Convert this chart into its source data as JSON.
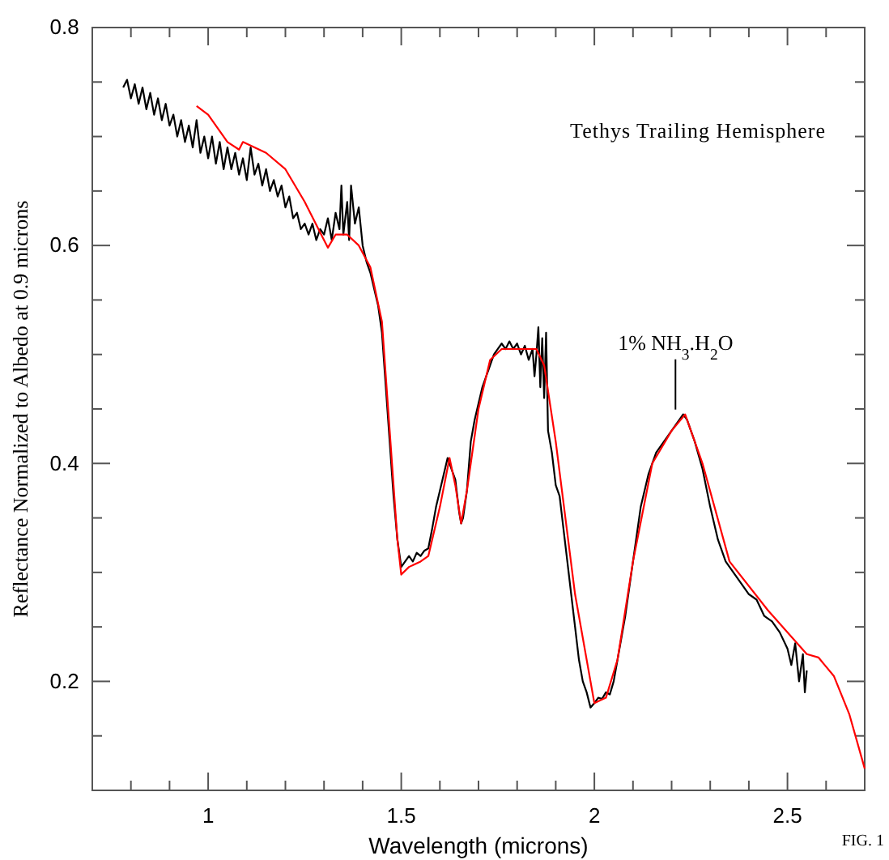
{
  "chart_data": {
    "type": "line",
    "xlabel": "Wavelength (microns)",
    "ylabel": "Reflectance Normalized to Albedo at 0.9 microns",
    "xlim": [
      0.7,
      2.7
    ],
    "ylim": [
      0.1,
      0.8
    ],
    "xticks": [
      {
        "value": 0.8,
        "label": null
      },
      {
        "value": 0.9,
        "label": null
      },
      1,
      {
        "value": 1.1,
        "label": null
      },
      {
        "value": 1.2,
        "label": null
      },
      {
        "value": 1.3,
        "label": null
      },
      {
        "value": 1.4,
        "label": null
      },
      1.5,
      {
        "value": 1.6,
        "label": null
      },
      {
        "value": 1.7,
        "label": null
      },
      {
        "value": 1.8,
        "label": null
      },
      {
        "value": 1.9,
        "label": null
      },
      2,
      {
        "value": 2.1,
        "label": null
      },
      {
        "value": 2.2,
        "label": null
      },
      {
        "value": 2.3,
        "label": null
      },
      {
        "value": 2.4,
        "label": null
      },
      2.5,
      {
        "value": 2.6,
        "label": null
      }
    ],
    "yticks": [
      {
        "value": 0.15,
        "label": null
      },
      0.2,
      {
        "value": 0.25,
        "label": null
      },
      {
        "value": 0.3,
        "label": null
      },
      {
        "value": 0.35,
        "label": null
      },
      0.4,
      {
        "value": 0.45,
        "label": null
      },
      {
        "value": 0.5,
        "label": null
      },
      {
        "value": 0.55,
        "label": null
      },
      0.6,
      {
        "value": 0.65,
        "label": null
      },
      {
        "value": 0.7,
        "label": null
      },
      {
        "value": 0.75,
        "label": null
      },
      0.8
    ],
    "grid": false,
    "marker": "none",
    "line_style": "solid",
    "annotations": [
      "Tethys Trailing Hemisphere",
      {
        "text": "1% NH$_{3}$.H$_{2}$O",
        "x": 2.21,
        "y": 0.445
      },
      "FIG. 1"
    ],
    "series": [
      {
        "color": "#000000",
        "x": [
          0.78,
          0.79,
          0.8,
          0.81,
          0.82,
          0.83,
          0.84,
          0.85,
          0.86,
          0.87,
          0.88,
          0.89,
          0.9,
          0.91,
          0.92,
          0.93,
          0.94,
          0.95,
          0.96,
          0.97,
          0.98,
          0.99,
          1.0,
          1.01,
          1.02,
          1.03,
          1.04,
          1.05,
          1.06,
          1.07,
          1.08,
          1.09,
          1.1,
          1.11,
          1.12,
          1.13,
          1.14,
          1.15,
          1.16,
          1.17,
          1.18,
          1.19,
          1.2,
          1.21,
          1.22,
          1.23,
          1.24,
          1.25,
          1.26,
          1.27,
          1.28,
          1.29,
          1.3,
          1.31,
          1.32,
          1.33,
          1.34,
          1.345,
          1.35,
          1.36,
          1.365,
          1.37,
          1.38,
          1.39,
          1.4,
          1.41,
          1.42,
          1.43,
          1.44,
          1.45,
          1.46,
          1.47,
          1.48,
          1.49,
          1.5,
          1.51,
          1.52,
          1.53,
          1.54,
          1.55,
          1.56,
          1.57,
          1.58,
          1.59,
          1.6,
          1.61,
          1.62,
          1.63,
          1.64,
          1.65,
          1.655,
          1.66,
          1.67,
          1.68,
          1.69,
          1.7,
          1.71,
          1.72,
          1.73,
          1.74,
          1.75,
          1.76,
          1.77,
          1.78,
          1.79,
          1.8,
          1.81,
          1.82,
          1.83,
          1.84,
          1.845,
          1.85,
          1.855,
          1.86,
          1.865,
          1.87,
          1.875,
          1.88,
          1.89,
          1.9,
          1.91,
          1.92,
          1.93,
          1.94,
          1.95,
          1.96,
          1.97,
          1.98,
          1.99,
          2.0,
          2.01,
          2.02,
          2.03,
          2.04,
          2.05,
          2.06,
          2.08,
          2.1,
          2.12,
          2.14,
          2.16,
          2.18,
          2.2,
          2.22,
          2.23,
          2.24,
          2.26,
          2.28,
          2.3,
          2.32,
          2.34,
          2.36,
          2.38,
          2.4,
          2.42,
          2.44,
          2.46,
          2.48,
          2.5,
          2.51,
          2.52,
          2.53,
          2.54,
          2.545,
          2.55
        ],
        "values": [
          0.745,
          0.752,
          0.735,
          0.748,
          0.73,
          0.745,
          0.725,
          0.74,
          0.72,
          0.735,
          0.715,
          0.73,
          0.71,
          0.72,
          0.7,
          0.715,
          0.695,
          0.71,
          0.69,
          0.715,
          0.685,
          0.7,
          0.68,
          0.7,
          0.675,
          0.695,
          0.67,
          0.69,
          0.67,
          0.685,
          0.665,
          0.68,
          0.66,
          0.69,
          0.665,
          0.675,
          0.655,
          0.67,
          0.65,
          0.66,
          0.645,
          0.655,
          0.635,
          0.645,
          0.625,
          0.63,
          0.615,
          0.62,
          0.61,
          0.62,
          0.605,
          0.615,
          0.61,
          0.625,
          0.605,
          0.63,
          0.615,
          0.655,
          0.61,
          0.64,
          0.605,
          0.655,
          0.62,
          0.635,
          0.6,
          0.585,
          0.575,
          0.56,
          0.545,
          0.52,
          0.47,
          0.42,
          0.37,
          0.33,
          0.305,
          0.31,
          0.315,
          0.31,
          0.318,
          0.315,
          0.32,
          0.322,
          0.34,
          0.36,
          0.375,
          0.39,
          0.405,
          0.395,
          0.385,
          0.355,
          0.345,
          0.35,
          0.375,
          0.42,
          0.44,
          0.455,
          0.47,
          0.48,
          0.49,
          0.5,
          0.505,
          0.51,
          0.505,
          0.512,
          0.505,
          0.51,
          0.5,
          0.508,
          0.495,
          0.505,
          0.48,
          0.5,
          0.525,
          0.47,
          0.515,
          0.46,
          0.52,
          0.43,
          0.41,
          0.38,
          0.37,
          0.34,
          0.31,
          0.28,
          0.25,
          0.22,
          0.2,
          0.19,
          0.176,
          0.18,
          0.185,
          0.184,
          0.19,
          0.188,
          0.2,
          0.22,
          0.26,
          0.31,
          0.36,
          0.39,
          0.41,
          0.42,
          0.43,
          0.44,
          0.445,
          0.44,
          0.42,
          0.395,
          0.36,
          0.33,
          0.31,
          0.3,
          0.29,
          0.28,
          0.275,
          0.26,
          0.255,
          0.245,
          0.23,
          0.215,
          0.235,
          0.2,
          0.225,
          0.19,
          0.21
        ]
      },
      {
        "color": "#ff0000",
        "x": [
          0.97,
          1.0,
          1.05,
          1.08,
          1.09,
          1.15,
          1.2,
          1.25,
          1.3,
          1.31,
          1.33,
          1.36,
          1.39,
          1.42,
          1.45,
          1.47,
          1.49,
          1.5,
          1.52,
          1.55,
          1.57,
          1.6,
          1.625,
          1.64,
          1.655,
          1.67,
          1.7,
          1.73,
          1.76,
          1.8,
          1.85,
          1.87,
          1.9,
          1.95,
          2.0,
          2.03,
          2.06,
          2.1,
          2.15,
          2.2,
          2.235,
          2.28,
          2.35,
          2.45,
          2.55,
          2.58,
          2.62,
          2.66,
          2.7
        ],
        "values": [
          0.728,
          0.72,
          0.695,
          0.688,
          0.695,
          0.685,
          0.67,
          0.64,
          0.605,
          0.598,
          0.61,
          0.61,
          0.6,
          0.58,
          0.53,
          0.43,
          0.33,
          0.298,
          0.305,
          0.31,
          0.315,
          0.36,
          0.405,
          0.38,
          0.345,
          0.375,
          0.45,
          0.495,
          0.505,
          0.505,
          0.505,
          0.49,
          0.42,
          0.28,
          0.18,
          0.185,
          0.22,
          0.31,
          0.4,
          0.43,
          0.445,
          0.4,
          0.31,
          0.265,
          0.225,
          0.222,
          0.205,
          0.17,
          0.12
        ]
      }
    ]
  }
}
